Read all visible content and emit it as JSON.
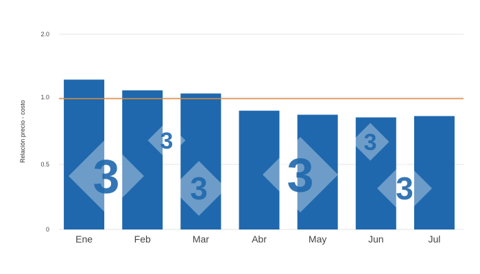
{
  "chart_data": {
    "type": "bar",
    "title": "",
    "xlabel": "",
    "ylabel": "Relación precio - costo",
    "categories": [
      "Ene",
      "Feb",
      "Mar",
      "Abr",
      "May",
      "Jun",
      "Jul"
    ],
    "values": [
      1.28,
      1.11,
      1.06,
      0.9,
      0.87,
      0.85,
      0.86
    ],
    "y_ticks": [
      "0",
      "0.5",
      "1.0",
      "2.0"
    ],
    "y_tick_values": [
      0,
      0.5,
      1.0,
      2.0
    ],
    "reference_line": {
      "value": 0.99,
      "color": "#e08a3c"
    },
    "bar_color": "#1f68ad",
    "grid": true,
    "legend": "none"
  },
  "watermark": {
    "text": "3"
  }
}
